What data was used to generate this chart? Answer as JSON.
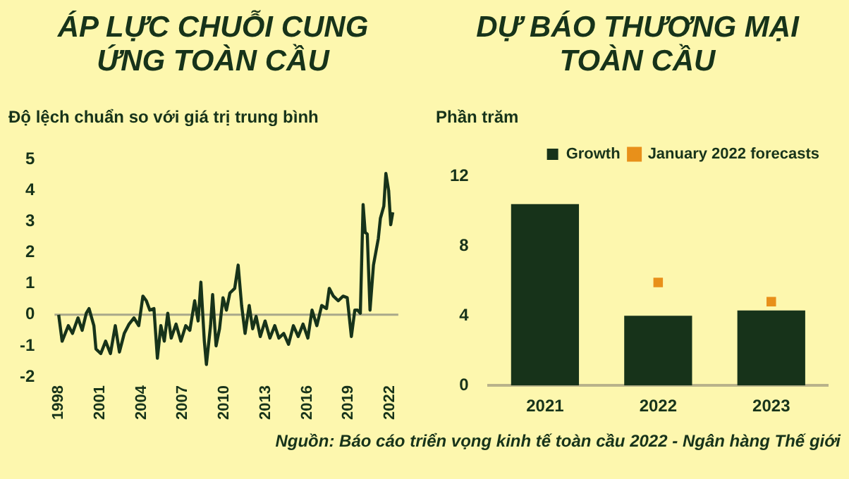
{
  "chart_data": [
    {
      "type": "line",
      "title": "ÁP LỰC CHUỖI CUNG ỨNG TOÀN CẦU",
      "ylabel": "Độ lệch chuẩn so với giá trị trung bình",
      "x": [
        1998.0,
        1998.25,
        1998.7,
        1999.0,
        1999.4,
        1999.7,
        2000.0,
        2000.2,
        2000.55,
        2000.7,
        2001.05,
        2001.4,
        2001.75,
        2002.1,
        2002.4,
        2002.75,
        2003.1,
        2003.45,
        2003.8,
        2004.1,
        2004.35,
        2004.6,
        2004.9,
        2005.15,
        2005.4,
        2005.65,
        2005.9,
        2006.15,
        2006.5,
        2006.85,
        2007.2,
        2007.5,
        2007.85,
        2008.1,
        2008.3,
        2008.55,
        2008.7,
        2009.0,
        2009.15,
        2009.4,
        2009.65,
        2009.9,
        2010.15,
        2010.4,
        2010.75,
        2011.0,
        2011.25,
        2011.5,
        2011.8,
        2012.05,
        2012.3,
        2012.6,
        2012.95,
        2013.3,
        2013.65,
        2013.95,
        2014.3,
        2014.65,
        2015.0,
        2015.35,
        2015.7,
        2016.05,
        2016.35,
        2016.7,
        2017.05,
        2017.4,
        2017.6,
        2017.9,
        2018.25,
        2018.6,
        2018.9,
        2019.2,
        2019.45,
        2019.65,
        2019.85,
        2020.05,
        2020.2,
        2020.35,
        2020.55,
        2020.8,
        2021.15,
        2021.3,
        2021.55,
        2021.7,
        2021.9,
        2022.05,
        2022.2
      ],
      "series": [
        {
          "color": "#17331a",
          "values": [
            0,
            -0.85,
            -0.35,
            -0.6,
            -0.1,
            -0.5,
            0.05,
            0.2,
            -0.35,
            -1.1,
            -1.25,
            -0.85,
            -1.25,
            -0.35,
            -1.2,
            -0.6,
            -0.3,
            -0.1,
            -0.35,
            0.6,
            0.45,
            0.15,
            0.2,
            -1.4,
            -0.35,
            -0.85,
            0.05,
            -0.75,
            -0.3,
            -0.85,
            -0.35,
            -0.5,
            0.45,
            -0.2,
            1.05,
            -0.85,
            -1.6,
            -0.35,
            0.65,
            -1.0,
            -0.45,
            0.55,
            0.15,
            0.7,
            0.85,
            1.6,
            0.3,
            -0.6,
            0.3,
            -0.45,
            -0.05,
            -0.7,
            -0.2,
            -0.75,
            -0.35,
            -0.75,
            -0.6,
            -0.95,
            -0.35,
            -0.7,
            -0.3,
            -0.75,
            0.15,
            -0.35,
            0.3,
            0.2,
            0.85,
            0.6,
            0.45,
            0.6,
            0.55,
            -0.7,
            0.15,
            0.15,
            0.05,
            3.55,
            2.65,
            2.6,
            0.15,
            1.6,
            2.45,
            3.1,
            3.5,
            4.55,
            4.0,
            2.9,
            3.3
          ]
        }
      ],
      "xlim": [
        1997.7,
        2022.6
      ],
      "xticks": [
        1998,
        2001,
        2004,
        2007,
        2010,
        2013,
        2016,
        2019,
        2022
      ],
      "ylim": [
        -2,
        5
      ],
      "yticks": [
        -2,
        -1,
        0,
        1,
        2,
        3,
        4,
        5
      ],
      "grid": false,
      "legend": false,
      "marker": "none",
      "ref_lines": [
        {
          "axis": "y",
          "value": 0,
          "color": "#a9a98a"
        }
      ]
    },
    {
      "type": "bar",
      "title": "DỰ BÁO THƯƠNG MẠI TOÀN CẦU",
      "ylabel": "Phần trăm",
      "categories": [
        "2021",
        "2022",
        "2023"
      ],
      "series": [
        {
          "name": "Growth",
          "color": "#17331a",
          "values": [
            10.4,
            4.0,
            4.3
          ]
        },
        {
          "name": "January 2022 forecasts",
          "type": "scatter",
          "marker": "square",
          "color": "#e8901a",
          "values": [
            null,
            5.9,
            4.8
          ]
        }
      ],
      "ylim": [
        0,
        12
      ],
      "yticks": [
        0,
        4,
        8,
        12
      ],
      "grid": false,
      "legend": "top right",
      "annotations": [
        "Nguồn: Báo cáo triển vọng kinh tế toàn cầu 2022 - Ngân hàng Thế giới"
      ]
    }
  ]
}
